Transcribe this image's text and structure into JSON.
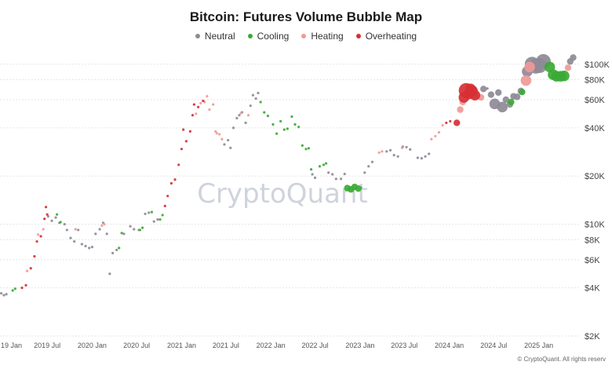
{
  "title": "Bitcoin: Futures Volume Bubble Map",
  "legend": {
    "items": [
      {
        "label": "Neutral",
        "color": "#8e8a96"
      },
      {
        "label": "Cooling",
        "color": "#3aaa35"
      },
      {
        "label": "Heating",
        "color": "#ee9a98"
      },
      {
        "label": "Overheating",
        "color": "#d63034"
      }
    ]
  },
  "watermark": "CryptoQuant",
  "copyright": "© CryptoQuant. All rights reserv",
  "chart_data": {
    "type": "scatter",
    "title": "Bitcoin: Futures Volume Bubble Map",
    "y_scale": "log",
    "ylim": [
      2000,
      125000
    ],
    "y_ticks": [
      2000,
      4000,
      6000,
      8000,
      10000,
      20000,
      40000,
      60000,
      80000,
      100000
    ],
    "y_tick_labels": [
      "$2K",
      "$4K",
      "$6K",
      "$8K",
      "$10K",
      "$20K",
      "$40K",
      "$60K",
      "$80K",
      "$100K"
    ],
    "x_range": [
      "2018-12-20",
      "2025-06-15"
    ],
    "x_ticks": [
      "2019-01-01",
      "2019-07-01",
      "2020-01-01",
      "2020-07-01",
      "2021-01-01",
      "2021-07-01",
      "2022-01-01",
      "2022-07-01",
      "2023-01-01",
      "2023-07-01",
      "2024-01-01",
      "2024-07-01",
      "2025-01-01"
    ],
    "x_tick_labels": [
      "19 Jan",
      "2019 Jul",
      "2020 Jan",
      "2020 Jul",
      "2021 Jan",
      "2021 Jul",
      "2022 Jan",
      "2022 Jul",
      "2023 Jan",
      "2023 Jul",
      "2024 Jan",
      "2024 Jul",
      "2025 Jan"
    ],
    "grid": true,
    "legend_position": "top-center",
    "series": [
      {
        "name": "Neutral",
        "color": "#8e8a96",
        "points": [
          [
            "2018-12-25",
            3700,
            1
          ],
          [
            "2019-01-05",
            3600,
            1
          ],
          [
            "2019-01-15",
            3650,
            1
          ],
          [
            "2019-07-05",
            11200,
            1
          ],
          [
            "2019-07-20",
            10500,
            1
          ],
          [
            "2019-08-05",
            11000,
            1
          ],
          [
            "2019-08-20",
            10200,
            1
          ],
          [
            "2019-09-10",
            10000,
            1
          ],
          [
            "2019-09-20",
            9200,
            1
          ],
          [
            "2019-10-05",
            8200,
            1
          ],
          [
            "2019-10-20",
            7800,
            1
          ],
          [
            "2019-11-05",
            9200,
            1
          ],
          [
            "2019-11-20",
            7500,
            1
          ],
          [
            "2019-12-05",
            7300,
            1
          ],
          [
            "2019-12-20",
            7100,
            1
          ],
          [
            "2020-01-01",
            7200,
            1
          ],
          [
            "2020-01-15",
            8700,
            1
          ],
          [
            "2020-02-01",
            9300,
            1
          ],
          [
            "2020-02-15",
            10200,
            1
          ],
          [
            "2020-03-01",
            8700,
            1
          ],
          [
            "2020-03-13",
            4900,
            1
          ],
          [
            "2020-03-25",
            6600,
            1
          ],
          [
            "2020-04-10",
            6900,
            1
          ],
          [
            "2020-05-10",
            8700,
            1
          ],
          [
            "2020-06-05",
            9700,
            1
          ],
          [
            "2020-06-20",
            9300,
            1
          ],
          [
            "2020-07-10",
            9200,
            1
          ],
          [
            "2020-08-05",
            11600,
            1
          ],
          [
            "2020-08-20",
            11800,
            1
          ],
          [
            "2020-09-10",
            10400,
            1
          ],
          [
            "2020-09-25",
            10700,
            1
          ],
          [
            "2021-06-25",
            31500,
            1
          ],
          [
            "2021-07-10",
            33500,
            1
          ],
          [
            "2021-07-20",
            30000,
            1
          ],
          [
            "2021-08-01",
            40000,
            1
          ],
          [
            "2021-08-15",
            46000,
            1
          ],
          [
            "2021-08-25",
            48000,
            1
          ],
          [
            "2021-09-05",
            50000,
            1
          ],
          [
            "2021-09-20",
            43000,
            1
          ],
          [
            "2021-10-10",
            55000,
            1
          ],
          [
            "2021-10-20",
            64000,
            1
          ],
          [
            "2021-11-01",
            61000,
            1
          ],
          [
            "2021-11-10",
            66000,
            1
          ],
          [
            "2022-06-20",
            20500,
            1
          ],
          [
            "2022-07-01",
            19500,
            1
          ],
          [
            "2022-08-25",
            21000,
            1
          ],
          [
            "2022-09-10",
            20500,
            1
          ],
          [
            "2022-09-25",
            19200,
            1
          ],
          [
            "2022-10-15",
            19200,
            1
          ],
          [
            "2022-10-30",
            20600,
            1
          ],
          [
            "2023-01-05",
            16900,
            1
          ],
          [
            "2023-01-20",
            21000,
            1
          ],
          [
            "2023-02-05",
            23000,
            1
          ],
          [
            "2023-02-20",
            24500,
            1
          ],
          [
            "2023-04-20",
            28500,
            1
          ],
          [
            "2023-05-05",
            29000,
            1
          ],
          [
            "2023-05-20",
            27000,
            1
          ],
          [
            "2023-06-05",
            26500,
            1
          ],
          [
            "2023-06-25",
            30500,
            1
          ],
          [
            "2023-07-10",
            30300,
            1
          ],
          [
            "2023-07-25",
            29300,
            1
          ],
          [
            "2023-08-25",
            26000,
            1
          ],
          [
            "2023-09-10",
            25800,
            1
          ],
          [
            "2023-09-25",
            26500,
            1
          ],
          [
            "2023-10-10",
            27500,
            1
          ],
          [
            "2024-05-20",
            70000,
            2
          ],
          [
            "2024-06-05",
            70500,
            1
          ],
          [
            "2024-06-20",
            64500,
            2
          ],
          [
            "2024-07-05",
            56500,
            3
          ],
          [
            "2024-07-20",
            66500,
            2
          ],
          [
            "2024-08-05",
            54000,
            3
          ],
          [
            "2024-08-20",
            60000,
            2
          ],
          [
            "2024-09-05",
            56000,
            2
          ],
          [
            "2024-09-20",
            63000,
            2
          ],
          [
            "2024-10-05",
            62500,
            2
          ],
          [
            "2024-10-20",
            68000,
            2
          ],
          [
            "2024-11-15",
            90000,
            3
          ],
          [
            "2024-12-05",
            100000,
            4
          ],
          [
            "2024-12-20",
            97000,
            4
          ],
          [
            "2025-01-05",
            98000,
            4
          ],
          [
            "2025-01-20",
            104000,
            4
          ],
          [
            "2025-05-10",
            104000,
            2
          ],
          [
            "2025-05-22",
            110000,
            2
          ]
        ]
      },
      {
        "name": "Cooling",
        "color": "#3aaa35",
        "points": [
          [
            "2019-02-10",
            3850,
            1
          ],
          [
            "2019-02-20",
            3950,
            1
          ],
          [
            "2019-08-10",
            11500,
            1
          ],
          [
            "2019-08-25",
            10300,
            1
          ],
          [
            "2020-04-20",
            7100,
            1
          ],
          [
            "2020-05-01",
            8800,
            1
          ],
          [
            "2020-07-15",
            9200,
            1
          ],
          [
            "2020-07-25",
            9500,
            1
          ],
          [
            "2020-09-01",
            11900,
            1
          ],
          [
            "2020-10-05",
            10700,
            1
          ],
          [
            "2020-10-15",
            11400,
            1
          ],
          [
            "2021-11-20",
            58000,
            1
          ],
          [
            "2021-12-05",
            50000,
            1
          ],
          [
            "2021-12-20",
            47500,
            1
          ],
          [
            "2022-01-10",
            42000,
            1
          ],
          [
            "2022-01-25",
            36800,
            1
          ],
          [
            "2022-02-10",
            44000,
            1
          ],
          [
            "2022-02-25",
            39000,
            1
          ],
          [
            "2022-03-10",
            39500,
            1
          ],
          [
            "2022-03-28",
            47000,
            1
          ],
          [
            "2022-04-10",
            42000,
            1
          ],
          [
            "2022-04-25",
            40500,
            1
          ],
          [
            "2022-05-10",
            31000,
            1
          ],
          [
            "2022-05-25",
            29500,
            1
          ],
          [
            "2022-06-05",
            29800,
            1
          ],
          [
            "2022-06-15",
            22000,
            1
          ],
          [
            "2022-07-20",
            23000,
            1
          ],
          [
            "2022-08-05",
            23500,
            1
          ],
          [
            "2022-08-15",
            24000,
            1
          ],
          [
            "2022-11-10",
            16800,
            2
          ],
          [
            "2022-11-25",
            16500,
            2
          ],
          [
            "2022-12-10",
            17100,
            2
          ],
          [
            "2022-12-25",
            16700,
            2
          ],
          [
            "2024-09-10",
            58000,
            2
          ],
          [
            "2024-10-25",
            67000,
            2
          ],
          [
            "2025-02-15",
            96000,
            3
          ],
          [
            "2025-03-01",
            86000,
            3
          ],
          [
            "2025-03-15",
            84000,
            3
          ],
          [
            "2025-04-01",
            84000,
            3
          ],
          [
            "2025-04-15",
            84500,
            3
          ]
        ]
      },
      {
        "name": "Heating",
        "color": "#ee9a98",
        "points": [
          [
            "2019-04-10",
            5100,
            1
          ],
          [
            "2019-05-25",
            8600,
            1
          ],
          [
            "2019-06-15",
            9300,
            1
          ],
          [
            "2019-10-25",
            9300,
            1
          ],
          [
            "2020-02-10",
            9800,
            1
          ],
          [
            "2020-02-20",
            10000,
            1
          ],
          [
            "2021-03-01",
            49000,
            1
          ],
          [
            "2021-03-20",
            57000,
            1
          ],
          [
            "2021-04-05",
            58000,
            1
          ],
          [
            "2021-04-15",
            63000,
            1
          ],
          [
            "2021-04-25",
            52000,
            1
          ],
          [
            "2021-05-10",
            56000,
            1
          ],
          [
            "2021-05-20",
            38000,
            1
          ],
          [
            "2021-05-25",
            37000,
            1
          ],
          [
            "2021-06-05",
            36500,
            1
          ],
          [
            "2021-06-15",
            34000,
            1
          ],
          [
            "2021-09-01",
            49500,
            1
          ],
          [
            "2021-10-01",
            48000,
            1
          ],
          [
            "2023-03-20",
            28000,
            1
          ],
          [
            "2023-04-01",
            28500,
            1
          ],
          [
            "2023-06-22",
            30000,
            1
          ],
          [
            "2023-10-20",
            34000,
            1
          ],
          [
            "2023-11-05",
            35500,
            1
          ],
          [
            "2023-11-20",
            37500,
            1
          ],
          [
            "2023-12-05",
            41500,
            1
          ],
          [
            "2024-02-15",
            52000,
            2
          ],
          [
            "2024-02-25",
            58000,
            2
          ],
          [
            "2024-03-20",
            65000,
            2
          ],
          [
            "2024-04-10",
            70000,
            2
          ],
          [
            "2024-04-20",
            63000,
            2
          ],
          [
            "2024-05-10",
            62000,
            2
          ],
          [
            "2024-11-10",
            79000,
            3
          ],
          [
            "2024-11-25",
            96000,
            3
          ],
          [
            "2025-05-01",
            95000,
            2
          ]
        ]
      },
      {
        "name": "Overheating",
        "color": "#d63034",
        "points": [
          [
            "2019-03-20",
            4000,
            1
          ],
          [
            "2019-04-05",
            4150,
            1
          ],
          [
            "2019-04-25",
            5300,
            1
          ],
          [
            "2019-05-10",
            6300,
            1
          ],
          [
            "2019-05-20",
            7800,
            1
          ],
          [
            "2019-06-05",
            8400,
            1
          ],
          [
            "2019-06-20",
            10800,
            1
          ],
          [
            "2019-06-26",
            12800,
            1
          ],
          [
            "2019-07-01",
            11500,
            1
          ],
          [
            "2020-10-25",
            13000,
            1
          ],
          [
            "2020-11-05",
            15000,
            1
          ],
          [
            "2020-11-20",
            18000,
            1
          ],
          [
            "2020-12-05",
            19000,
            1
          ],
          [
            "2020-12-20",
            23500,
            1
          ],
          [
            "2021-01-01",
            29500,
            1
          ],
          [
            "2021-01-08",
            39000,
            1
          ],
          [
            "2021-01-20",
            33000,
            1
          ],
          [
            "2021-02-05",
            38000,
            1
          ],
          [
            "2021-02-15",
            48000,
            1
          ],
          [
            "2021-02-21",
            56000,
            1
          ],
          [
            "2021-03-10",
            54000,
            1
          ],
          [
            "2021-03-30",
            59000,
            1
          ],
          [
            "2023-12-20",
            43000,
            1
          ],
          [
            "2024-01-05",
            44000,
            1
          ],
          [
            "2024-02-01",
            43000,
            2
          ],
          [
            "2024-03-01",
            62000,
            3
          ],
          [
            "2024-03-10",
            68500,
            4
          ],
          [
            "2024-03-20",
            65000,
            3
          ],
          [
            "2024-03-28",
            70000,
            3
          ],
          [
            "2024-04-05",
            68000,
            3
          ],
          [
            "2024-04-15",
            64000,
            3
          ]
        ]
      }
    ]
  }
}
